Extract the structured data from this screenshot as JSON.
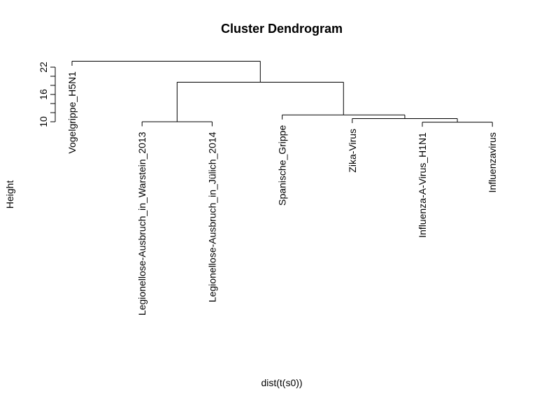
{
  "chart_data": {
    "type": "dendrogram",
    "title": "Cluster Dendrogram",
    "xlabel": "dist(t(s0))",
    "ylabel": "Height",
    "y_ticks": [
      10,
      16,
      22
    ],
    "y_tick_labels": [
      "10",
      "16",
      "22"
    ],
    "leaves": [
      "Vogelgrippe_H5N1",
      "Legionellose-Ausbruch_in_Warstein_2013",
      "Legionellose-Ausbruch_in_Jülich_2014",
      "Spanische_Grippe",
      "Zika-Virus",
      "Influenza-A-Virus_H1N1",
      "Influenzavirus"
    ],
    "merges": [
      {
        "left": 6,
        "right": 7,
        "height": 9.9
      },
      {
        "left": 5,
        "right": "m1",
        "height": 10.7
      },
      {
        "left": 4,
        "right": "m2",
        "height": 11.5
      },
      {
        "left": 2,
        "right": 3,
        "height": 10.0
      },
      {
        "left": "m4",
        "right": "m3",
        "height": 18.7
      },
      {
        "left": 1,
        "right": "m5",
        "height": 23.3
      }
    ]
  }
}
